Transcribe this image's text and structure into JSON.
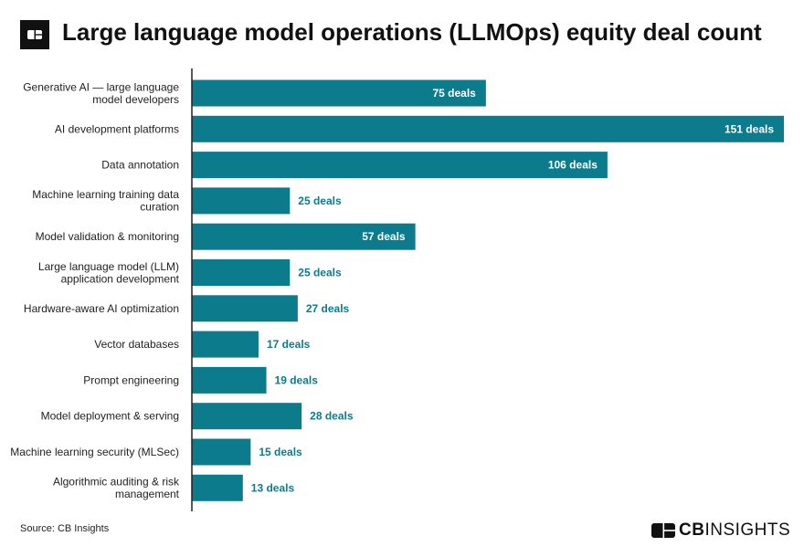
{
  "title": "Large language model operations (LLMOps) equity deal count",
  "source": "Source: CB Insights",
  "logo": {
    "text_bold": "CB",
    "text_light": "INSIGHTS"
  },
  "colors": {
    "bar": "#0c7b8b",
    "label_inside": "#ffffff",
    "label_outside": "#0c7b8b"
  },
  "chart_data": {
    "type": "bar",
    "orientation": "horizontal",
    "title": "Large language model operations (LLMOps) equity deal count",
    "categories": [
      [
        "Generative AI — large language",
        "model developers"
      ],
      [
        "AI development platforms"
      ],
      [
        "Data annotation"
      ],
      [
        "Machine learning training data",
        "curation"
      ],
      [
        "Model validation & monitoring"
      ],
      [
        "Large language model (LLM)",
        "application development"
      ],
      [
        "Hardware-aware AI optimization"
      ],
      [
        "Vector databases"
      ],
      [
        "Prompt engineering"
      ],
      [
        "Model deployment & serving"
      ],
      [
        "Machine learning security (MLSec)"
      ],
      [
        "Algorithmic auditing & risk",
        "management"
      ]
    ],
    "values": [
      75,
      151,
      106,
      25,
      57,
      25,
      27,
      17,
      19,
      28,
      15,
      13
    ],
    "data_labels": [
      "75 deals",
      "151 deals",
      "106 deals",
      "25 deals",
      "57 deals",
      "25 deals",
      "27 deals",
      "17 deals",
      "19 deals",
      "28 deals",
      "15 deals",
      "13 deals"
    ],
    "xlim": [
      0,
      151
    ],
    "grid": false,
    "legend": "none"
  }
}
